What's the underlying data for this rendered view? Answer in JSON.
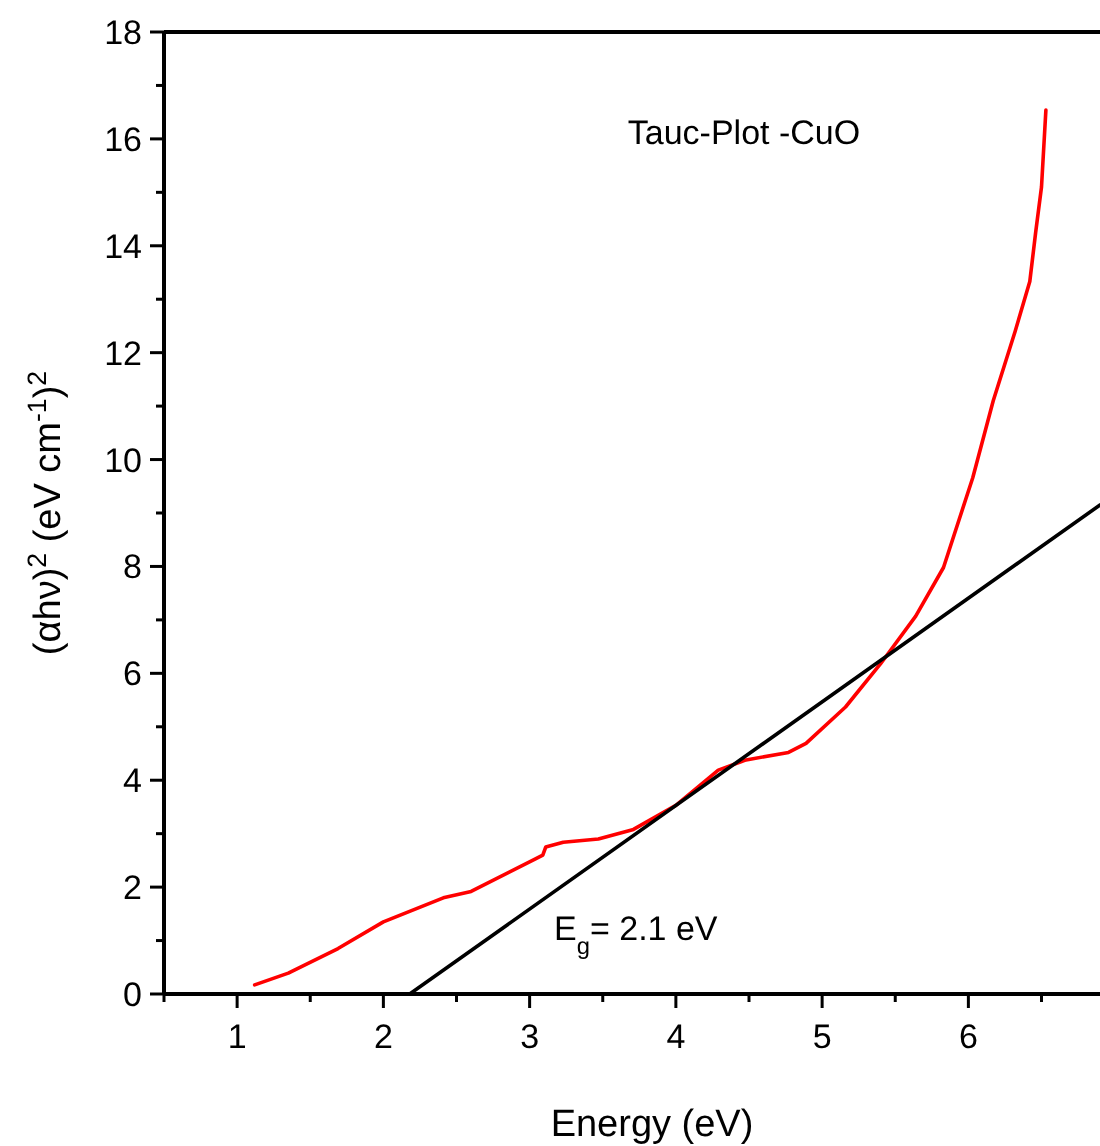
{
  "chart_data": {
    "type": "line",
    "title": "Tauc-Plot -CuO",
    "xlabel": "Energy (eV)",
    "ylabel": "(αhν)$^{2}$ (eV cm$^{-1}$)$^{2}$",
    "annotations": [
      "E$_{g}$= 2.1 eV"
    ],
    "xlim": [
      0.5,
      6.9
    ],
    "ylim": [
      0,
      18
    ],
    "xticks": [
      {
        "value": 0.5,
        "label": null
      },
      1,
      {
        "value": 1.5,
        "label": null
      },
      2,
      {
        "value": 2.5,
        "label": null
      },
      3,
      {
        "value": 3.5,
        "label": null
      },
      4,
      {
        "value": 4.5,
        "label": null
      },
      5,
      {
        "value": 5.5,
        "label": null
      },
      6,
      {
        "value": 6.5,
        "label": null
      }
    ],
    "yticks": [
      0,
      {
        "value": 1,
        "label": null
      },
      2,
      {
        "value": 3,
        "label": null
      },
      4,
      {
        "value": 5,
        "label": null
      },
      6,
      {
        "value": 7,
        "label": null
      },
      8,
      {
        "value": 9,
        "label": null
      },
      10,
      {
        "value": 11,
        "label": null
      },
      12,
      {
        "value": 13,
        "label": null
      },
      14,
      {
        "value": 15,
        "label": null
      },
      16,
      {
        "value": 17,
        "label": null
      },
      18
    ],
    "grid": false,
    "marker": "none",
    "line_style": "solid",
    "series": [
      {
        "color": "#ff0000",
        "x": [
          1.12,
          1.35,
          1.69,
          2.0,
          2.41,
          2.6,
          3.04,
          3.09,
          3.11,
          3.23,
          3.47,
          3.71,
          4.0,
          4.29,
          4.48,
          4.77,
          4.89,
          5.16,
          5.4,
          5.64,
          5.83,
          6.03,
          6.17,
          6.32,
          6.42,
          6.46,
          6.5,
          6.53
        ],
        "values": [
          0.17,
          0.39,
          0.85,
          1.35,
          1.8,
          1.92,
          2.53,
          2.6,
          2.75,
          2.84,
          2.9,
          3.08,
          3.53,
          4.19,
          4.38,
          4.52,
          4.69,
          5.37,
          6.18,
          7.07,
          7.98,
          9.66,
          11.1,
          12.4,
          13.33,
          14.25,
          15.1,
          16.54
        ]
      },
      {
        "color": "#000000",
        "x": [
          2.18,
          6.9
        ],
        "values": [
          0,
          9.15
        ]
      }
    ]
  }
}
